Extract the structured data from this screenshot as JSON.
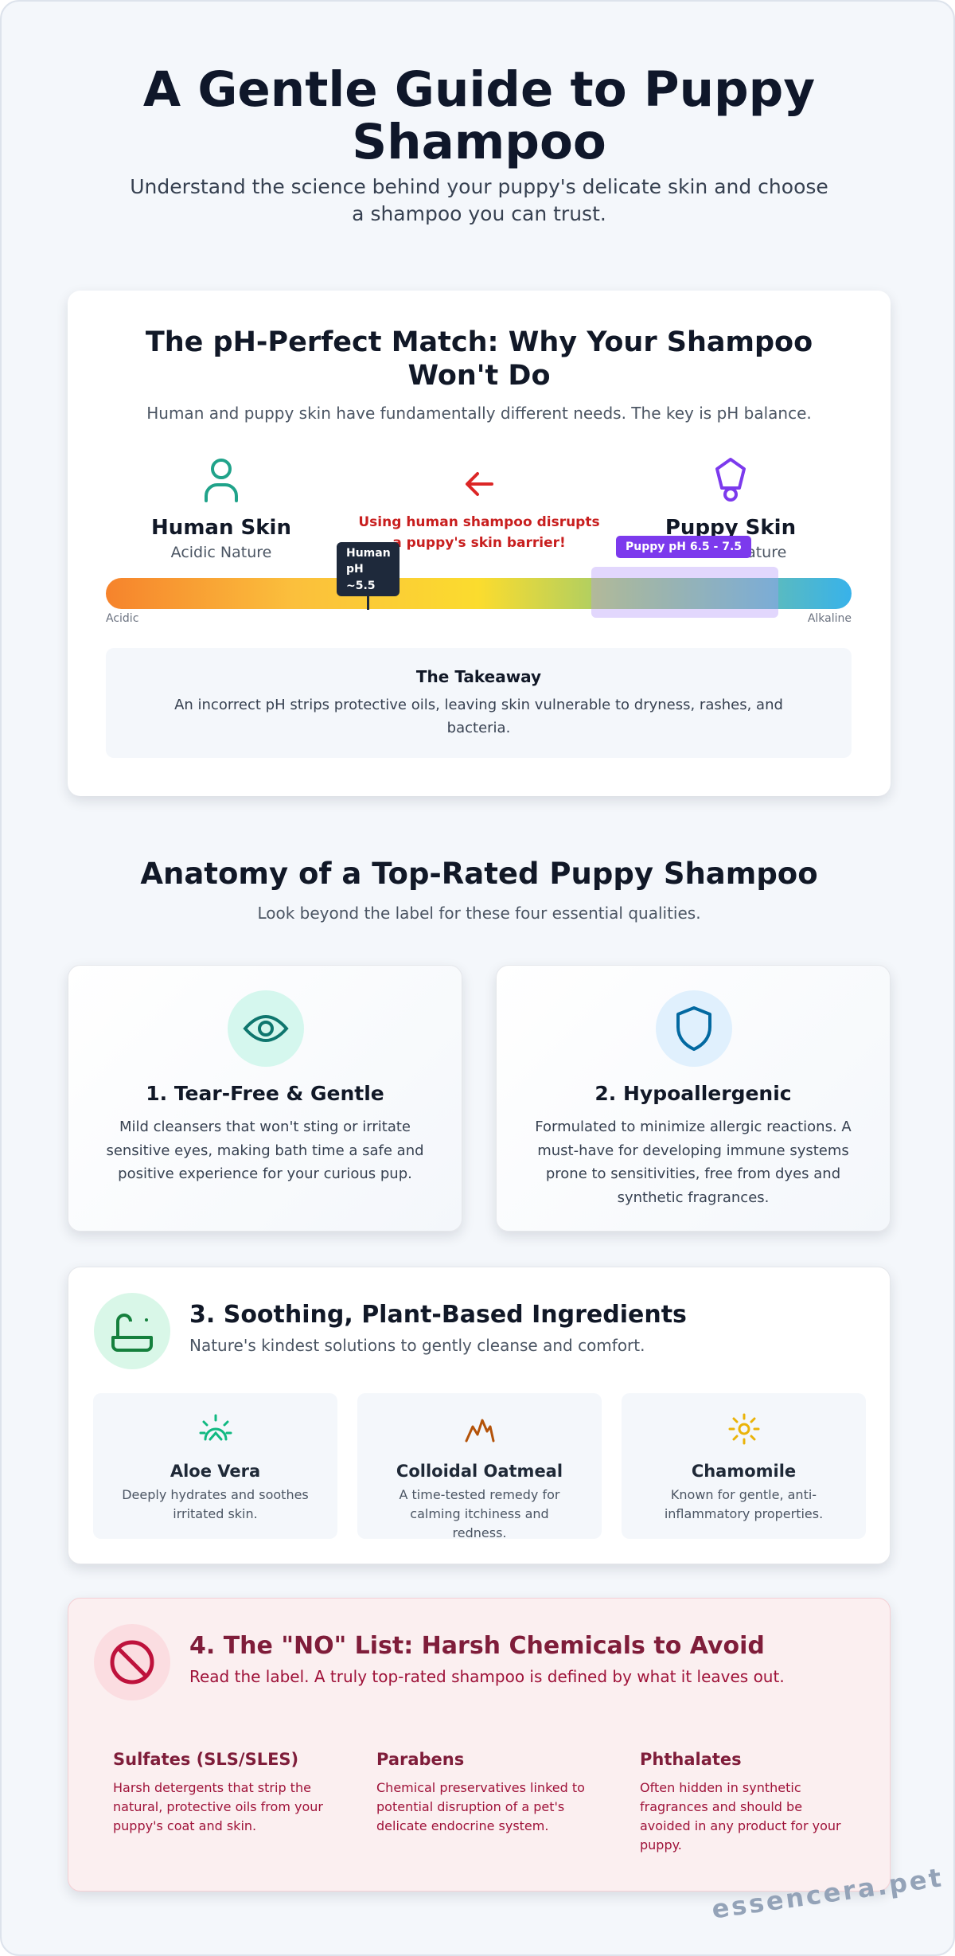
{
  "header": {
    "title": "A Gentle Guide to Puppy Shampoo",
    "subtitle": "Understand the science behind your puppy's delicate skin and choose a shampoo you can trust."
  },
  "ph_section": {
    "title": "The pH-Perfect Match: Why Your Shampoo Won't Do",
    "subtitle": "Human and puppy skin have fundamentally different needs. The key is pH balance.",
    "human": {
      "label": "Human Skin",
      "note": "Acidic Nature"
    },
    "warning": "Using human shampoo disrupts a puppy's skin barrier!",
    "puppy": {
      "label": "Puppy Skin",
      "note": "Neutral Nature"
    },
    "human_marker": "Human pH ~5.5",
    "puppy_range": "Puppy pH 6.5 - 7.5",
    "scale_left": "Acidic",
    "scale_right": "Alkaline",
    "takeaway": {
      "title": "The Takeaway",
      "text": "An incorrect pH strips protective oils, leaving skin vulnerable to dryness, rashes, and bacteria."
    }
  },
  "anatomy": {
    "title": "Anatomy of a Top-Rated Puppy Shampoo",
    "subtitle": "Look beyond the label for these four essential qualities."
  },
  "features": [
    {
      "title": "1. Tear-Free & Gentle",
      "text": "Mild cleansers that won't sting or irritate sensitive eyes, making bath time a safe and positive experience for your curious pup."
    },
    {
      "title": "2. Hypoallergenic",
      "text": "Formulated to minimize allergic reactions. A must-have for developing immune systems prone to sensitivities, free from dyes and synthetic fragrances."
    }
  ],
  "ingredients": {
    "title": "3. Soothing, Plant-Based Ingredients",
    "subtitle": "Nature's kindest solutions to gently cleanse and comfort.",
    "items": [
      {
        "name": "Aloe Vera",
        "text": "Deeply hydrates and soothes irritated skin."
      },
      {
        "name": "Colloidal Oatmeal",
        "text": "A time-tested remedy for calming itchiness and redness."
      },
      {
        "name": "Chamomile",
        "text": "Known for gentle, anti-inflammatory properties."
      }
    ]
  },
  "avoid": {
    "title": "4. The \"NO\" List: Harsh Chemicals to Avoid",
    "subtitle": "Read the label. A truly top-rated shampoo is defined by what it leaves out.",
    "items": [
      {
        "name": "Sulfates (SLS/SLES)",
        "text": "Harsh detergents that strip the natural, protective oils from your puppy's coat and skin."
      },
      {
        "name": "Parabens",
        "text": "Chemical preservatives linked to potential disruption of a pet's delicate endocrine system."
      },
      {
        "name": "Phthalates",
        "text": "Often hidden in synthetic fragrances and should be avoided in any product for your puppy."
      }
    ]
  },
  "watermark": "essencera.pet"
}
